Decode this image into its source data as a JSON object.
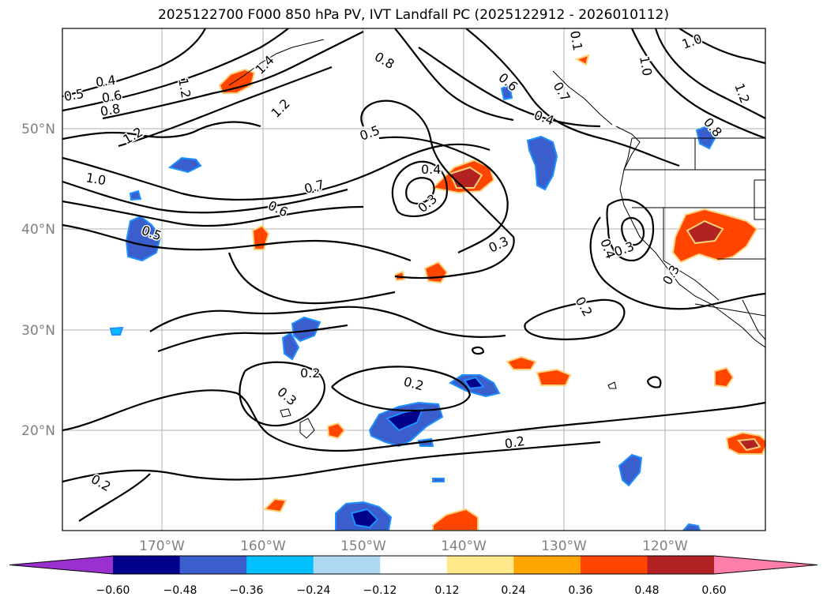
{
  "title": "2025122700 F000 850 hPa PV, IVT Landfall PC (2025122912 - 2026010112)",
  "map": {
    "lat_labels": [
      "50°N",
      "40°N",
      "30°N",
      "20°N"
    ],
    "lon_labels": [
      "170°W",
      "160°W",
      "150°W",
      "140°W",
      "130°W",
      "120°W"
    ],
    "label_color": "#808080",
    "contour_color": "#000000",
    "contour_labels": [
      {
        "text": "0.4"
      },
      {
        "text": "0.5"
      },
      {
        "text": "0.6"
      },
      {
        "text": "0.8"
      },
      {
        "text": "1.2"
      },
      {
        "text": "1.4"
      },
      {
        "text": "1.2"
      },
      {
        "text": "1.0"
      },
      {
        "text": "1.2"
      },
      {
        "text": "0.8"
      },
      {
        "text": "0.5"
      },
      {
        "text": "0.4"
      },
      {
        "text": "0.6"
      },
      {
        "text": "0.4"
      },
      {
        "text": "0.3"
      },
      {
        "text": "0.7"
      },
      {
        "text": "0.6"
      },
      {
        "text": "0.5"
      },
      {
        "text": "0.3"
      },
      {
        "text": "0.4"
      },
      {
        "text": "0.3"
      },
      {
        "text": "0.3"
      },
      {
        "text": "0.2"
      },
      {
        "text": "0.2"
      },
      {
        "text": "0.3"
      },
      {
        "text": "0.2"
      },
      {
        "text": "0.2"
      },
      {
        "text": "0.2"
      },
      {
        "text": "1.0"
      },
      {
        "text": "1.0"
      },
      {
        "text": "1.2"
      },
      {
        "text": "0.8"
      },
      {
        "text": "0.7"
      },
      {
        "text": "0.1"
      }
    ]
  },
  "colorbar": {
    "ticks": [
      "−0.60",
      "−0.48",
      "−0.36",
      "−0.24",
      "−0.12",
      "0.12",
      "0.24",
      "0.36",
      "0.48",
      "0.60"
    ],
    "colors": [
      "#9b30d0",
      "#00008b",
      "#3a5fcd",
      "#00bfff",
      "#add8f0",
      "#ffffff",
      "#ffe98a",
      "#ffa500",
      "#ff4500",
      "#b22222",
      "#ff7fa8"
    ]
  }
}
